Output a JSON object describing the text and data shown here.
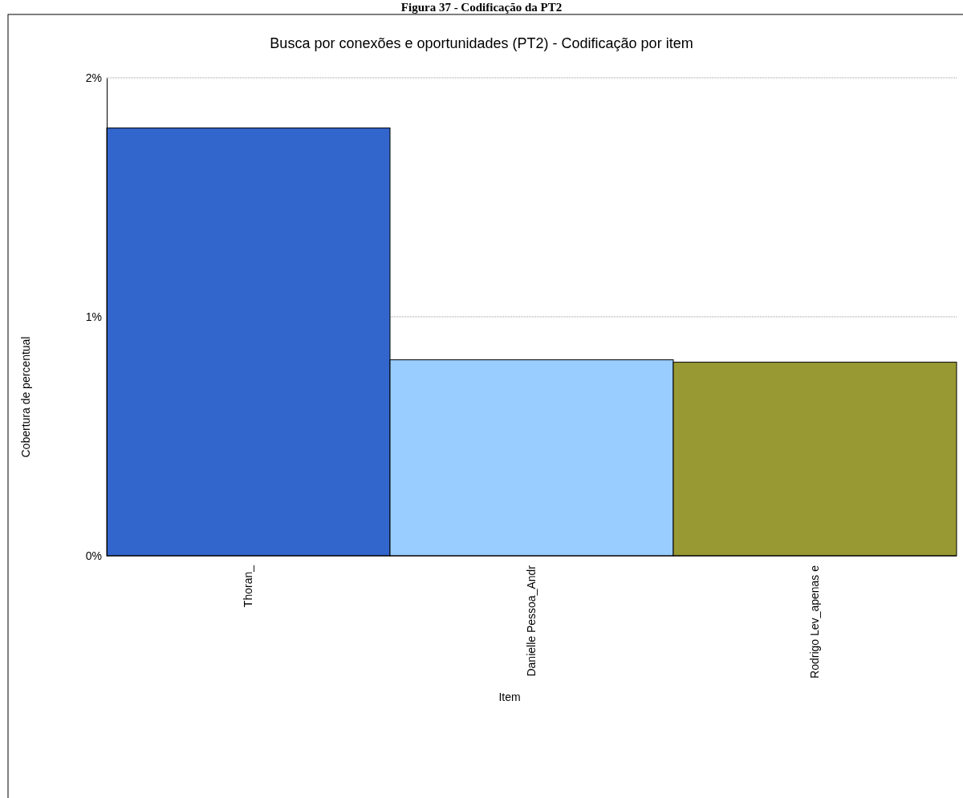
{
  "chart_data": {
    "type": "bar",
    "title": "Busca por conexões e oportunidades (PT2) - Codificação por item",
    "xlabel": "Item",
    "ylabel": "Cobertura de percentual",
    "annotations": [
      "Figura 37 - Codificação da PT2"
    ],
    "categories": [
      "Thoran_",
      "Danielle Pessoa_Andr",
      "Rodrigo Lev_apenas e"
    ],
    "values": [
      1.79,
      0.82,
      0.81
    ],
    "colors": [
      "#3366cc",
      "#99ccff",
      "#999933"
    ],
    "ylim": [
      0,
      2
    ],
    "yticks": [
      {
        "value": 0,
        "label": "0%"
      },
      {
        "value": 1,
        "label": "1%"
      },
      {
        "value": 2,
        "label": "2%"
      }
    ],
    "grid": "y"
  }
}
